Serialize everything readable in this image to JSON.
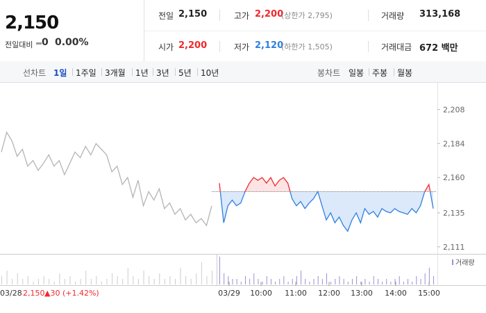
{
  "header": {
    "price": "2,150",
    "change_label": "전일대비",
    "change": "0",
    "change_pct": "0.00%"
  },
  "stats": [
    {
      "label": "전일",
      "value": "2,150"
    },
    {
      "label": "고가",
      "value": "2,200",
      "extra": "(상한가 2,795)"
    },
    {
      "label": "거래량",
      "value": "313,168"
    },
    {
      "label": "시가",
      "value": "2,200"
    },
    {
      "label": "저가",
      "value": "2,120",
      "extra": "(하한가 1,505)"
    },
    {
      "label": "거래대금",
      "value": "672 백만"
    }
  ],
  "tabs": {
    "line_label": "선차트",
    "periods": [
      "1일",
      "1주일",
      "3개월",
      "1년",
      "3년",
      "5년",
      "10년"
    ],
    "candle_label": "봉차트",
    "candles": [
      "일봉",
      "주봉",
      "월봉"
    ]
  },
  "chart_data": {
    "type": "line",
    "ylim": [
      2106,
      2224
    ],
    "yticks": [
      {
        "value": 2111,
        "label": "2,111"
      },
      {
        "value": 2135,
        "label": "2,135"
      },
      {
        "value": 2160,
        "label": "2,160"
      },
      {
        "value": 2184,
        "label": "2,184"
      },
      {
        "value": 2208,
        "label": "2,208"
      }
    ],
    "xticks": [
      "03/29",
      "10:00",
      "11:00",
      "12:00",
      "13:00",
      "14:00",
      "15:00"
    ],
    "base": 2150,
    "up_color": "#f0282d",
    "down_color": "#2f7fe0",
    "series": [
      {
        "name": "03/28",
        "color": "#b4b4b4",
        "values": [
          2178,
          2192,
          2186,
          2175,
          2180,
          2168,
          2172,
          2165,
          2170,
          2176,
          2168,
          2172,
          2162,
          2170,
          2178,
          2174,
          2182,
          2176,
          2184,
          2180,
          2176,
          2164,
          2168,
          2155,
          2160,
          2146,
          2158,
          2140,
          2150,
          2144,
          2152,
          2138,
          2142,
          2134,
          2138,
          2130,
          2134,
          2128,
          2131,
          2126,
          2140
        ],
        "volume": [
          3,
          5,
          2,
          4,
          2,
          3,
          1,
          2,
          3,
          2,
          1,
          4,
          2,
          3,
          1,
          2,
          5,
          2,
          3,
          1,
          2,
          4,
          3,
          2,
          6,
          3,
          2,
          5,
          3,
          2,
          4,
          2,
          3,
          2,
          6,
          3,
          2,
          4,
          8,
          3,
          5
        ]
      },
      {
        "name": "03/29",
        "values": [
          2156,
          2128,
          2140,
          2144,
          2140,
          2142,
          2150,
          2156,
          2160,
          2158,
          2160,
          2156,
          2160,
          2154,
          2158,
          2160,
          2156,
          2145,
          2140,
          2143,
          2138,
          2142,
          2145,
          2150,
          2140,
          2130,
          2135,
          2128,
          2132,
          2126,
          2122,
          2130,
          2135,
          2128,
          2138,
          2134,
          2136,
          2132,
          2138,
          2136,
          2135,
          2138,
          2136,
          2135,
          2134,
          2138,
          2135,
          2140,
          2150,
          2155,
          2138
        ],
        "volume": [
          10,
          4,
          3,
          2,
          2,
          1,
          3,
          2,
          4,
          2,
          1,
          3,
          2,
          1,
          2,
          3,
          1,
          2,
          3,
          5,
          2,
          1,
          2,
          3,
          2,
          4,
          1,
          2,
          3,
          2,
          1,
          2,
          3,
          1,
          2,
          1,
          3,
          2,
          1,
          2,
          1,
          2,
          3,
          1,
          2,
          1,
          3,
          2,
          4,
          6,
          3
        ]
      }
    ],
    "volume_label": "거래량",
    "footer": {
      "date": "03/28",
      "price": "2,150",
      "change": "▲30 (+1.42%)"
    }
  }
}
